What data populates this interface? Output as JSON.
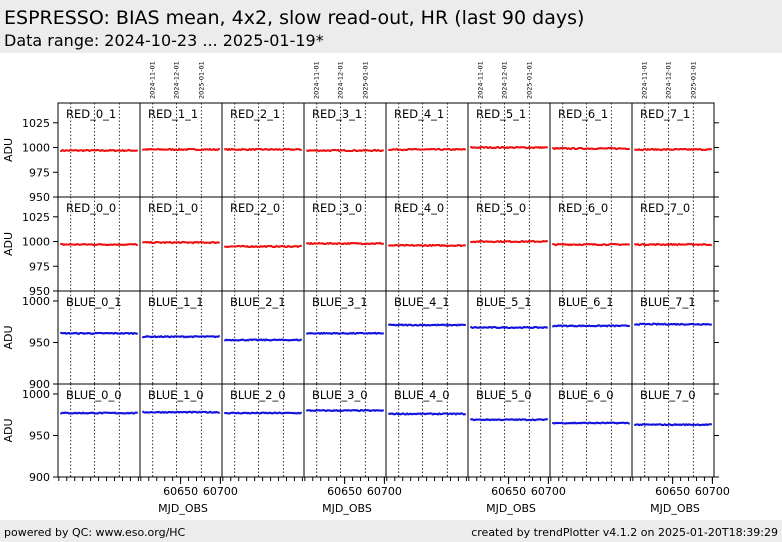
{
  "header": {
    "title": "ESPRESSO: BIAS mean, 4x2, slow read-out, HR (last 90 days)",
    "subtitle": "Data range: 2024-10-23 ... 2025-01-19*"
  },
  "footer": {
    "left": "powered by QC: www.eso.org/HC",
    "right": "created by trendPlotter v4.1.2 on 2025-01-20T18:39:29"
  },
  "colors": {
    "red": "#ee1111",
    "blue": "#1111dd",
    "header_bg": "#ececec"
  },
  "chart_data": {
    "type": "scatter",
    "grid_layout": {
      "rows": 4,
      "columns": 8
    },
    "xlabel": "MJD_OBS",
    "xlim": [
      60599,
      60702
    ],
    "x_tick_labels": [
      "60650",
      "60700"
    ],
    "x_date_ticks": [
      "2024-11-01",
      "2024-12-01",
      "2025-01-01"
    ],
    "x_date_ticks_mjd": [
      60615,
      60645,
      60676
    ],
    "rows": [
      {
        "ylabel": "ADU",
        "ylim": [
          950,
          1045
        ],
        "yticks": [
          950,
          975,
          1000,
          1025
        ],
        "color": "red",
        "panels": [
          {
            "name": "RED_0_1",
            "level": 997
          },
          {
            "name": "RED_1_1",
            "level": 998
          },
          {
            "name": "RED_2_1",
            "level": 998
          },
          {
            "name": "RED_3_1",
            "level": 997
          },
          {
            "name": "RED_4_1",
            "level": 998
          },
          {
            "name": "RED_5_1",
            "level": 1000
          },
          {
            "name": "RED_6_1",
            "level": 999
          },
          {
            "name": "RED_7_1",
            "level": 998
          }
        ]
      },
      {
        "ylabel": "ADU",
        "ylim": [
          950,
          1045
        ],
        "yticks": [
          950,
          975,
          1000,
          1025
        ],
        "color": "red",
        "panels": [
          {
            "name": "RED_0_0",
            "level": 997
          },
          {
            "name": "RED_1_0",
            "level": 999
          },
          {
            "name": "RED_2_0",
            "level": 995
          },
          {
            "name": "RED_3_0",
            "level": 998
          },
          {
            "name": "RED_4_0",
            "level": 996
          },
          {
            "name": "RED_5_0",
            "level": 1000
          },
          {
            "name": "RED_6_0",
            "level": 997
          },
          {
            "name": "RED_7_0",
            "level": 997
          }
        ]
      },
      {
        "ylabel": "ADU",
        "ylim": [
          900,
          1012
        ],
        "yticks": [
          900,
          950,
          1000
        ],
        "color": "blue",
        "panels": [
          {
            "name": "BLUE_0_1",
            "level": 961
          },
          {
            "name": "BLUE_1_1",
            "level": 957
          },
          {
            "name": "BLUE_2_1",
            "level": 953
          },
          {
            "name": "BLUE_3_1",
            "level": 961
          },
          {
            "name": "BLUE_4_1",
            "level": 971
          },
          {
            "name": "BLUE_5_1",
            "level": 968
          },
          {
            "name": "BLUE_6_1",
            "level": 970
          },
          {
            "name": "BLUE_7_1",
            "level": 972
          }
        ]
      },
      {
        "ylabel": "ADU",
        "ylim": [
          900,
          1012
        ],
        "yticks": [
          900,
          950,
          1000
        ],
        "color": "blue",
        "panels": [
          {
            "name": "BLUE_0_0",
            "level": 977
          },
          {
            "name": "BLUE_1_0",
            "level": 978
          },
          {
            "name": "BLUE_2_0",
            "level": 977
          },
          {
            "name": "BLUE_3_0",
            "level": 980
          },
          {
            "name": "BLUE_4_0",
            "level": 976
          },
          {
            "name": "BLUE_5_0",
            "level": 969
          },
          {
            "name": "BLUE_6_0",
            "level": 965
          },
          {
            "name": "BLUE_7_0",
            "level": 963
          }
        ]
      }
    ]
  }
}
